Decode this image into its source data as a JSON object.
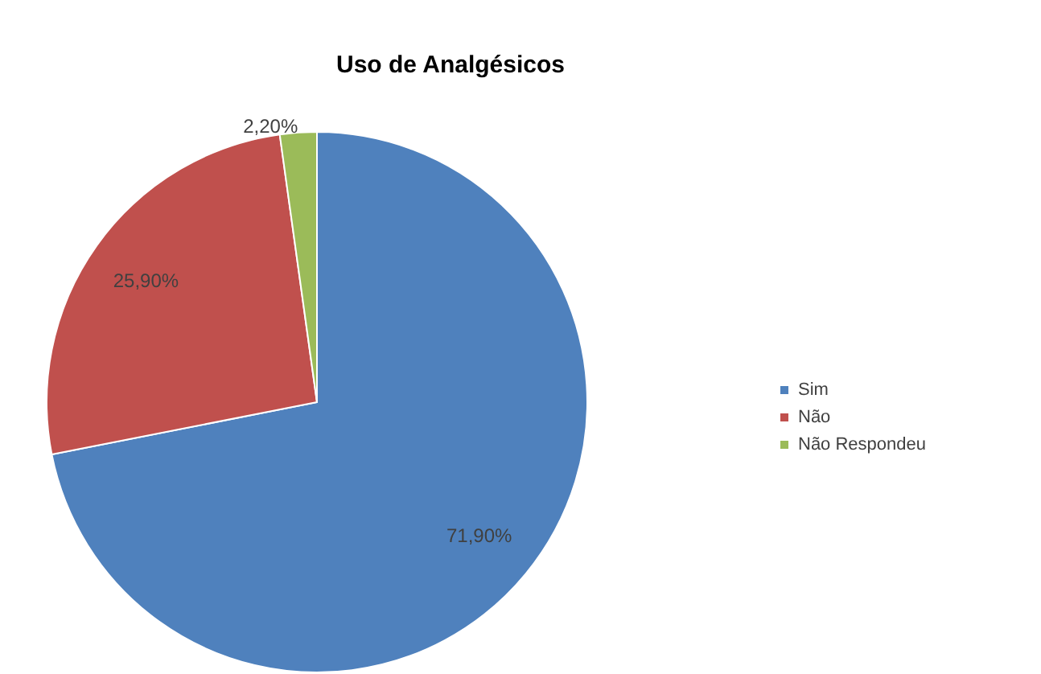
{
  "chart_data": {
    "type": "pie",
    "title": "Uso de Analgésicos",
    "categories": [
      "Sim",
      "Não",
      "Não Respondeu"
    ],
    "values": [
      71.9,
      25.9,
      2.2
    ],
    "colors": [
      "#4f81bd",
      "#c0504d",
      "#9bbb59"
    ],
    "value_labels": [
      "71,90%",
      "25,90%",
      "2,20%"
    ],
    "legend": "right"
  }
}
